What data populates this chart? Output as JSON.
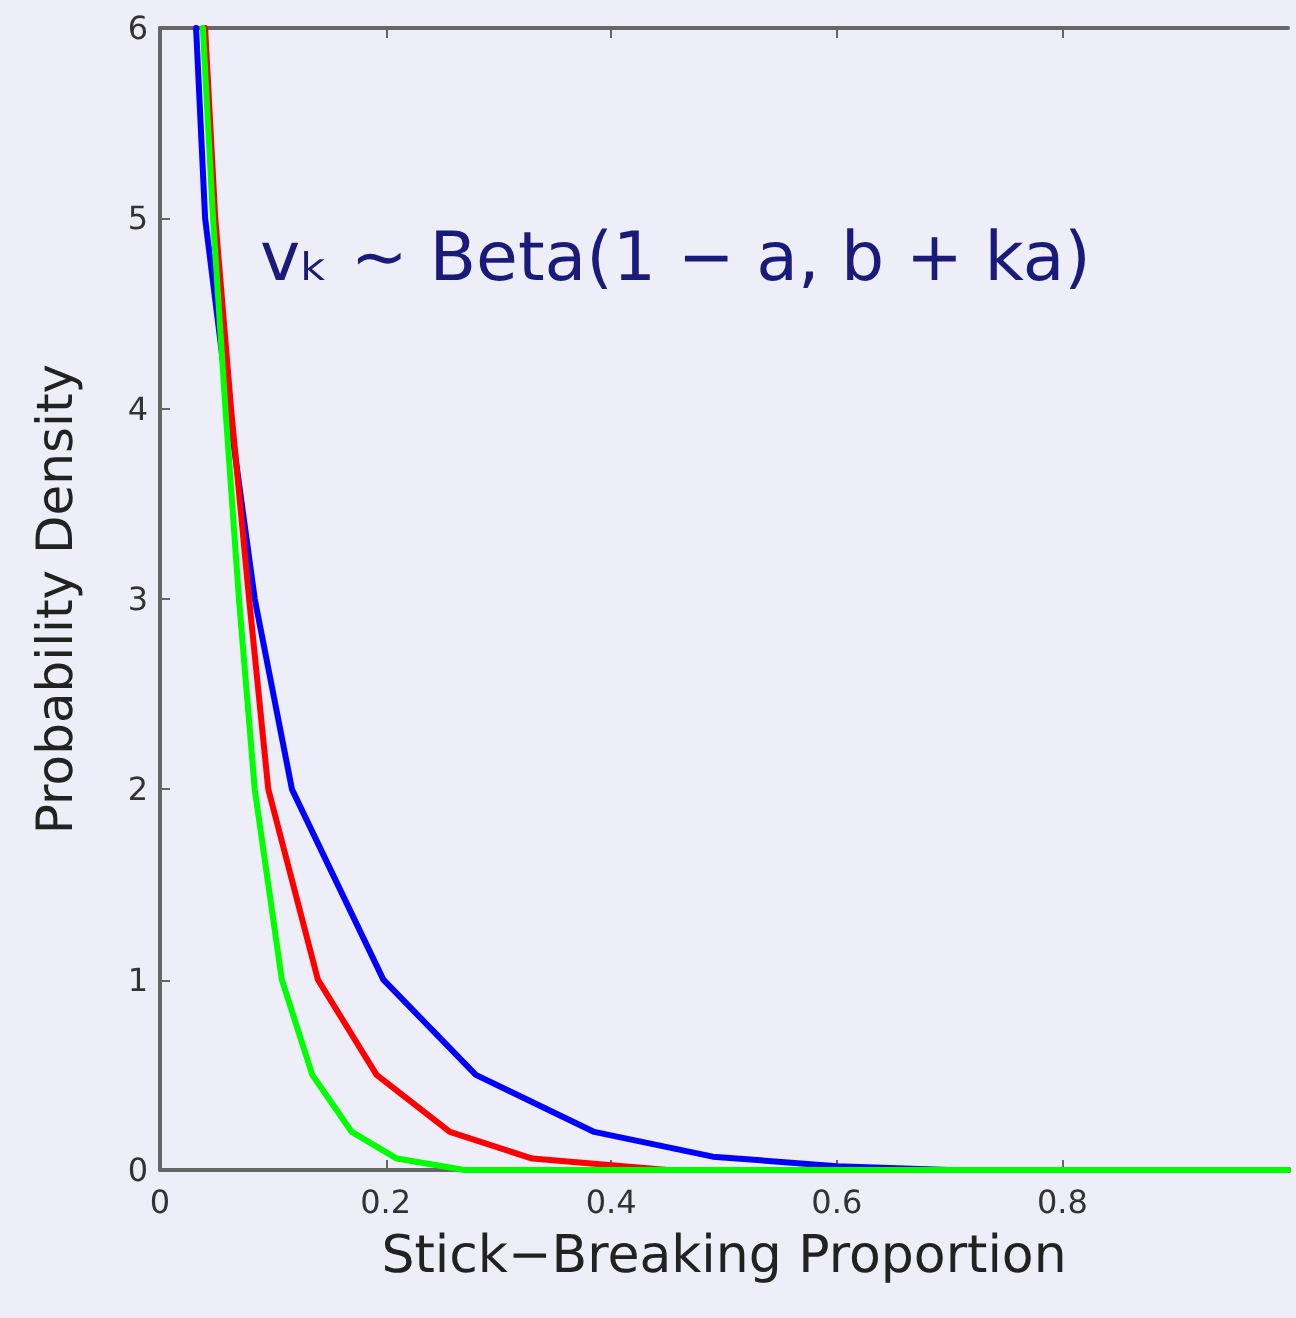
{
  "chart_data": {
    "type": "line",
    "xlabel": "Stick−Breaking Proportion",
    "ylabel": "Probability Density",
    "annotations": [
      "vₖ ∼ Beta(1 − a, b + ka)"
    ],
    "series": [
      {
        "color": "#0000ff",
        "x": [
          0.032,
          0.04,
          0.061,
          0.084,
          0.117,
          0.198,
          0.28,
          0.385,
          0.49,
          0.6,
          0.7,
          1
        ],
        "values": [
          6,
          5,
          4,
          3,
          2,
          1,
          0.5,
          0.2,
          0.07,
          0.02,
          0,
          0
        ]
      },
      {
        "color": "#ff0000",
        "x": [
          0.04,
          0.049,
          0.063,
          0.079,
          0.096,
          0.14,
          0.192,
          0.257,
          0.33,
          0.45,
          1
        ],
        "values": [
          6,
          5,
          4,
          3,
          2,
          1,
          0.5,
          0.2,
          0.06,
          0,
          0
        ]
      },
      {
        "color": "#00ff00",
        "x": [
          0.038,
          0.047,
          0.058,
          0.07,
          0.084,
          0.108,
          0.135,
          0.17,
          0.21,
          0.27,
          1
        ],
        "values": [
          6,
          5,
          4,
          3,
          2,
          1,
          0.5,
          0.2,
          0.06,
          0,
          0
        ]
      }
    ],
    "xlim": [
      0,
      1
    ],
    "xticks": [
      0,
      0.2,
      0.4,
      0.6,
      0.8
    ],
    "ylim": [
      0,
      6
    ],
    "yticks": [
      0,
      1,
      2,
      3,
      4,
      5,
      6
    ],
    "grid": false,
    "marker": "none",
    "line_style": "solid"
  }
}
